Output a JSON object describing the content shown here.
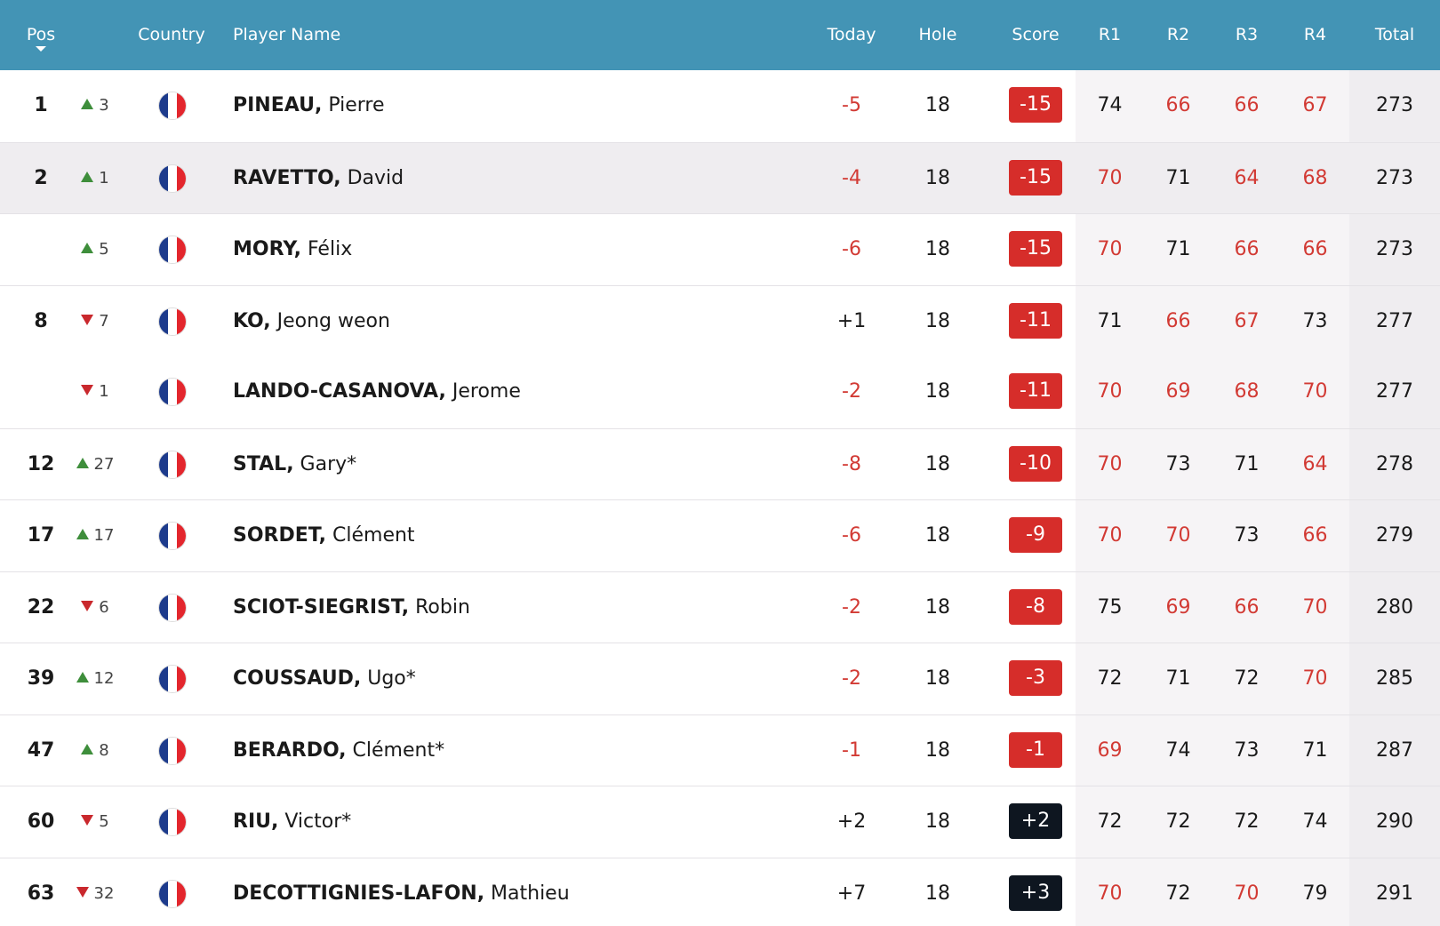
{
  "colors": {
    "header_bg": "#4394b5",
    "under_par": "#d23a34",
    "over_par_badge": "#0e1620",
    "badge_red": "#d62d2a",
    "move_up": "#3e8e3b",
    "move_down": "#c9282d",
    "highlight_row": "#efedf0"
  },
  "header": {
    "pos": "Pos",
    "country": "Country",
    "player_name": "Player Name",
    "today": "Today",
    "hole": "Hole",
    "score": "Score",
    "r1": "R1",
    "r2": "R2",
    "r3": "R3",
    "r4": "R4",
    "total": "Total",
    "sort_icon": "caret-down-icon"
  },
  "rows": [
    {
      "pos": "1",
      "move_dir": "up",
      "move": "3",
      "country": "France",
      "last": "PINEAU,",
      "first": "Pierre",
      "today": "-5",
      "hole": "18",
      "score": "-15",
      "r1": "74",
      "r2": "66",
      "r3": "66",
      "r4": "67",
      "total": "273",
      "highlight": false
    },
    {
      "pos": "2",
      "move_dir": "up",
      "move": "1",
      "country": "France",
      "last": "RAVETTO,",
      "first": "David",
      "today": "-4",
      "hole": "18",
      "score": "-15",
      "r1": "70",
      "r2": "71",
      "r3": "64",
      "r4": "68",
      "total": "273",
      "highlight": true
    },
    {
      "pos": "",
      "move_dir": "up",
      "move": "5",
      "country": "France",
      "last": "MORY,",
      "first": "Félix",
      "today": "-6",
      "hole": "18",
      "score": "-15",
      "r1": "70",
      "r2": "71",
      "r3": "66",
      "r4": "66",
      "total": "273",
      "highlight": false
    },
    {
      "pos": "8",
      "move_dir": "down",
      "move": "7",
      "country": "France",
      "last": "KO,",
      "first": "Jeong weon",
      "today": "+1",
      "hole": "18",
      "score": "-11",
      "r1": "71",
      "r2": "66",
      "r3": "67",
      "r4": "73",
      "total": "277",
      "highlight": false
    },
    {
      "pos": "",
      "move_dir": "down",
      "move": "1",
      "country": "France",
      "last": "LANDO-CASANOVA,",
      "first": "Jerome",
      "today": "-2",
      "hole": "18",
      "score": "-11",
      "r1": "70",
      "r2": "69",
      "r3": "68",
      "r4": "70",
      "total": "277",
      "highlight": false
    },
    {
      "pos": "12",
      "move_dir": "up",
      "move": "27",
      "country": "France",
      "last": "STAL,",
      "first": "Gary*",
      "today": "-8",
      "hole": "18",
      "score": "-10",
      "r1": "70",
      "r2": "73",
      "r3": "71",
      "r4": "64",
      "total": "278",
      "highlight": false
    },
    {
      "pos": "17",
      "move_dir": "up",
      "move": "17",
      "country": "France",
      "last": "SORDET,",
      "first": "Clément",
      "today": "-6",
      "hole": "18",
      "score": "-9",
      "r1": "70",
      "r2": "70",
      "r3": "73",
      "r4": "66",
      "total": "279",
      "highlight": false
    },
    {
      "pos": "22",
      "move_dir": "down",
      "move": "6",
      "country": "France",
      "last": "SCIOT-SIEGRIST,",
      "first": "Robin",
      "today": "-2",
      "hole": "18",
      "score": "-8",
      "r1": "75",
      "r2": "69",
      "r3": "66",
      "r4": "70",
      "total": "280",
      "highlight": false
    },
    {
      "pos": "39",
      "move_dir": "up",
      "move": "12",
      "country": "France",
      "last": "COUSSAUD,",
      "first": "Ugo*",
      "today": "-2",
      "hole": "18",
      "score": "-3",
      "r1": "72",
      "r2": "71",
      "r3": "72",
      "r4": "70",
      "total": "285",
      "highlight": false
    },
    {
      "pos": "47",
      "move_dir": "up",
      "move": "8",
      "country": "France",
      "last": "BERARDO,",
      "first": "Clément*",
      "today": "-1",
      "hole": "18",
      "score": "-1",
      "r1": "69",
      "r2": "74",
      "r3": "73",
      "r4": "71",
      "total": "287",
      "highlight": false
    },
    {
      "pos": "60",
      "move_dir": "down",
      "move": "5",
      "country": "France",
      "last": "RIU,",
      "first": "Victor*",
      "today": "+2",
      "hole": "18",
      "score": "+2",
      "r1": "72",
      "r2": "72",
      "r3": "72",
      "r4": "74",
      "total": "290",
      "highlight": false
    },
    {
      "pos": "63",
      "move_dir": "down",
      "move": "32",
      "country": "France",
      "last": "DECOTTIGNIES-LAFON,",
      "first": "Mathieu",
      "today": "+7",
      "hole": "18",
      "score": "+3",
      "r1": "70",
      "r2": "72",
      "r3": "70",
      "r4": "79",
      "total": "291",
      "highlight": false
    }
  ]
}
